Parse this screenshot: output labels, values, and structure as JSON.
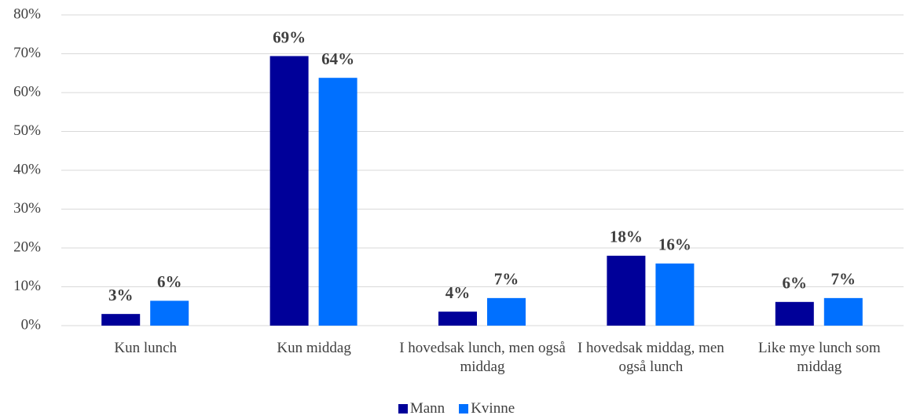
{
  "chart_data": {
    "type": "bar",
    "categories": [
      "Kun lunch",
      "Kun middag",
      "I hovedsak lunch, men også middag",
      "I hovedsak middag, men også lunch",
      "Like mye lunch som middag"
    ],
    "series": [
      {
        "name": "Mann",
        "color": "#000099",
        "values": [
          3.0,
          69.4,
          3.6,
          18.0,
          6.1
        ],
        "value_labels": [
          "3%",
          "69%",
          "4%",
          "18%",
          "6%"
        ]
      },
      {
        "name": "Kvinne",
        "color": "#0070ff",
        "values": [
          6.4,
          63.8,
          7.1,
          16.0,
          7.1
        ],
        "value_labels": [
          "6%",
          "64%",
          "7%",
          "16%",
          "7%"
        ]
      }
    ],
    "ylim": [
      0,
      80
    ],
    "yticks": [
      {
        "value": 0,
        "label": "0%"
      },
      {
        "value": 10,
        "label": "10%"
      },
      {
        "value": 20,
        "label": "20%"
      },
      {
        "value": 30,
        "label": "30%"
      },
      {
        "value": 40,
        "label": "40%"
      },
      {
        "value": 50,
        "label": "50%"
      },
      {
        "value": 60,
        "label": "60%"
      },
      {
        "value": 70,
        "label": "70%"
      },
      {
        "value": 80,
        "label": "80%"
      }
    ],
    "grid": true,
    "legend": "bottom"
  }
}
